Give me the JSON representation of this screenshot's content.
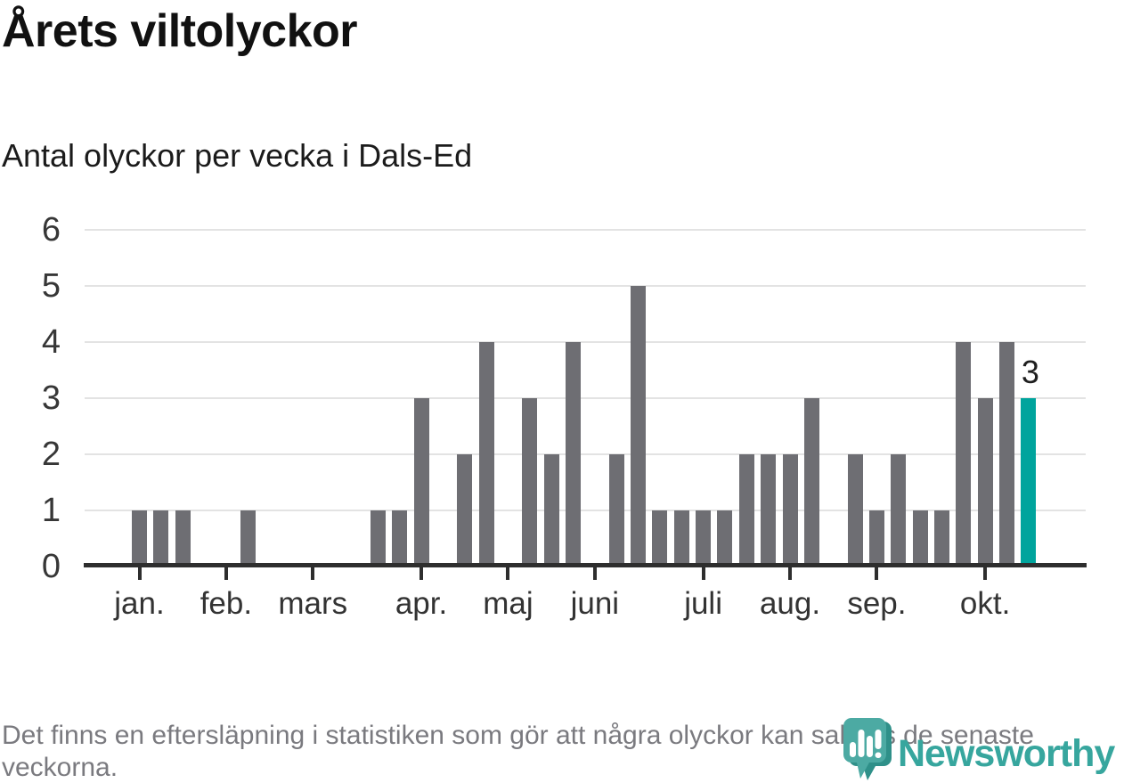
{
  "title": "Årets viltolyckor",
  "subtitle": "Antal olyckor per vecka i Dals-Ed",
  "footer": "Det finns en eftersläpning i statistiken som gör att några olyckor kan saknas de senaste veckorna.",
  "logo": {
    "text": "Newsworthy",
    "icon": "newsworthy-speech-bubble-barchart-icon"
  },
  "colors": {
    "bar_gray": "#6e6e73",
    "bar_highlight_teal": "#00a49d",
    "gridline": "#e3e3e3",
    "axis": "#2e2e2e",
    "title_text": "#111111",
    "footer_text": "#7a7a7f",
    "logo_teal": "#37a69e",
    "logo_icon_teal": "#4caaa3",
    "logo_icon_dark_teal": "#2f9089"
  },
  "chart_data": {
    "type": "bar",
    "title": "Årets viltolyckor",
    "subtitle": "Antal olyckor per vecka i Dals-Ed",
    "xlabel": "",
    "ylabel": "",
    "x_unit": "vecka (week number)",
    "x": [
      1,
      2,
      3,
      4,
      5,
      6,
      7,
      8,
      9,
      10,
      11,
      12,
      13,
      14,
      15,
      16,
      17,
      18,
      19,
      20,
      21,
      22,
      23,
      24,
      25,
      26,
      27,
      28,
      29,
      30,
      31,
      32,
      33,
      34,
      35,
      36,
      37,
      38,
      39,
      40,
      41,
      42
    ],
    "values": [
      1,
      1,
      1,
      0,
      0,
      1,
      0,
      0,
      0,
      0,
      0,
      1,
      1,
      3,
      0,
      2,
      4,
      0,
      3,
      2,
      4,
      0,
      2,
      5,
      1,
      1,
      1,
      1,
      2,
      2,
      2,
      3,
      0,
      2,
      1,
      2,
      1,
      1,
      4,
      3,
      4,
      3
    ],
    "highlight_last": true,
    "last_value_label": "3",
    "yticks": [
      0,
      1,
      2,
      3,
      4,
      5,
      6
    ],
    "ylim": [
      0,
      6
    ],
    "grid": "horizontal",
    "legend": "none",
    "month_ticks": [
      {
        "label": "jan.",
        "week": 1
      },
      {
        "label": "feb.",
        "week": 5
      },
      {
        "label": "mars",
        "week": 9
      },
      {
        "label": "apr.",
        "week": 14
      },
      {
        "label": "maj",
        "week": 18
      },
      {
        "label": "juni",
        "week": 22
      },
      {
        "label": "juli",
        "week": 27
      },
      {
        "label": "aug.",
        "week": 31
      },
      {
        "label": "sep.",
        "week": 35
      },
      {
        "label": "okt.",
        "week": 40
      }
    ]
  }
}
